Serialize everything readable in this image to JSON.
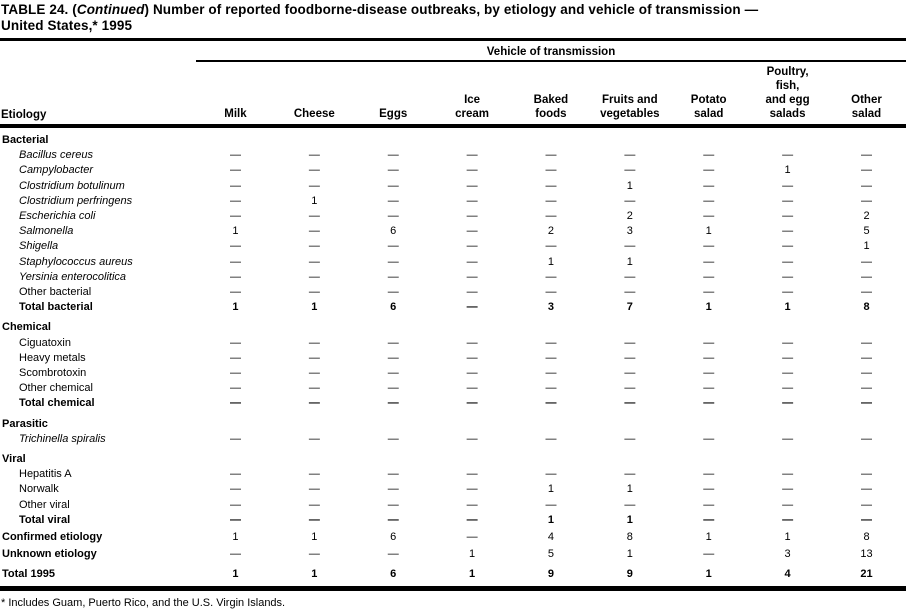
{
  "colors": {
    "text": "#000000",
    "background": "#ffffff"
  },
  "title": {
    "prefix": "TABLE 24. (",
    "continued": "Continued",
    "rest": ") Number of reported foodborne-disease outbreaks, by etiology and vehicle of transmission —",
    "line2": "United States,* 1995"
  },
  "table": {
    "spanner": "Vehicle of transmission",
    "etiology_header": "Etiology",
    "columns": [
      "Milk",
      "Cheese",
      "Eggs",
      "Ice\ncream",
      "Baked\nfoods",
      "Fruits and\nvegetables",
      "Potato\nsalad",
      "Poultry,\nfish,\nand egg\nsalads",
      "Other\nsalad"
    ],
    "rows": [
      {
        "name": "bacterial",
        "label": "Bacterial",
        "style": "section",
        "values": null
      },
      {
        "name": "bacillus-cereus",
        "label": "Bacillus cereus",
        "style": "species",
        "values": [
          "—",
          "—",
          "—",
          "—",
          "—",
          "—",
          "—",
          "—",
          "—"
        ]
      },
      {
        "name": "campylobacter",
        "label": "Campylobacter",
        "style": "species",
        "values": [
          "—",
          "—",
          "—",
          "—",
          "—",
          "—",
          "—",
          "1",
          "—"
        ]
      },
      {
        "name": "clostridium-botulinum",
        "label": "Clostridium botulinum",
        "style": "species",
        "values": [
          "—",
          "—",
          "—",
          "—",
          "—",
          "1",
          "—",
          "—",
          "—"
        ]
      },
      {
        "name": "clostridium-perfringens",
        "label": "Clostridium perfringens",
        "style": "species",
        "values": [
          "—",
          "1",
          "—",
          "—",
          "—",
          "—",
          "—",
          "—",
          "—"
        ]
      },
      {
        "name": "escherichia-coli",
        "label": "Escherichia coli",
        "style": "species",
        "values": [
          "—",
          "—",
          "—",
          "—",
          "—",
          "2",
          "—",
          "—",
          "2"
        ]
      },
      {
        "name": "salmonella",
        "label": "Salmonella",
        "style": "species",
        "values": [
          "1",
          "—",
          "6",
          "—",
          "2",
          "3",
          "1",
          "—",
          "5"
        ]
      },
      {
        "name": "shigella",
        "label": "Shigella",
        "style": "species",
        "values": [
          "—",
          "—",
          "—",
          "—",
          "—",
          "—",
          "—",
          "—",
          "1"
        ]
      },
      {
        "name": "staphylococcus-aureus",
        "label": "Staphylococcus aureus",
        "style": "species",
        "values": [
          "—",
          "—",
          "—",
          "—",
          "1",
          "1",
          "—",
          "—",
          "—"
        ]
      },
      {
        "name": "yersinia-enterocolitica",
        "label": "Yersinia enterocolitica",
        "style": "species",
        "values": [
          "—",
          "—",
          "—",
          "—",
          "—",
          "—",
          "—",
          "—",
          "—"
        ]
      },
      {
        "name": "other-bacterial",
        "label": "Other bacterial",
        "style": "item",
        "values": [
          "—",
          "—",
          "—",
          "—",
          "—",
          "—",
          "—",
          "—",
          "—"
        ]
      },
      {
        "name": "total-bacterial",
        "label": "Total bacterial",
        "style": "total",
        "values": [
          "1",
          "1",
          "6",
          "—",
          "3",
          "7",
          "1",
          "1",
          "8"
        ]
      },
      {
        "name": "chemical",
        "label": "Chemical",
        "style": "section",
        "values": null
      },
      {
        "name": "ciguatoxin",
        "label": "Ciguatoxin",
        "style": "item",
        "values": [
          "—",
          "—",
          "—",
          "—",
          "—",
          "—",
          "—",
          "—",
          "—"
        ]
      },
      {
        "name": "heavy-metals",
        "label": "Heavy metals",
        "style": "item",
        "values": [
          "—",
          "—",
          "—",
          "—",
          "—",
          "—",
          "—",
          "—",
          "—"
        ]
      },
      {
        "name": "scombrotoxin",
        "label": "Scombrotoxin",
        "style": "item",
        "values": [
          "—",
          "—",
          "—",
          "—",
          "—",
          "—",
          "—",
          "—",
          "—"
        ]
      },
      {
        "name": "other-chemical",
        "label": "Other chemical",
        "style": "item",
        "values": [
          "—",
          "—",
          "—",
          "—",
          "—",
          "—",
          "—",
          "—",
          "—"
        ]
      },
      {
        "name": "total-chemical",
        "label": "Total chemical",
        "style": "total",
        "values": [
          "—",
          "—",
          "—",
          "—",
          "—",
          "—",
          "—",
          "—",
          "—"
        ]
      },
      {
        "name": "parasitic",
        "label": "Parasitic",
        "style": "section",
        "values": null
      },
      {
        "name": "trichinella-spiralis",
        "label": "Trichinella spiralis",
        "style": "species",
        "values": [
          "—",
          "—",
          "—",
          "—",
          "—",
          "—",
          "—",
          "—",
          "—"
        ]
      },
      {
        "name": "viral",
        "label": "Viral",
        "style": "section",
        "values": null
      },
      {
        "name": "hepatitis-a",
        "label": "Hepatitis A",
        "style": "item",
        "values": [
          "—",
          "—",
          "—",
          "—",
          "—",
          "—",
          "—",
          "—",
          "—"
        ]
      },
      {
        "name": "norwalk",
        "label": "Norwalk",
        "style": "item",
        "values": [
          "—",
          "—",
          "—",
          "—",
          "1",
          "1",
          "—",
          "—",
          "—"
        ]
      },
      {
        "name": "other-viral",
        "label": "Other viral",
        "style": "item",
        "values": [
          "—",
          "—",
          "—",
          "—",
          "—",
          "—",
          "—",
          "—",
          "—"
        ]
      },
      {
        "name": "total-viral",
        "label": "Total viral",
        "style": "total",
        "values": [
          "—",
          "—",
          "—",
          "—",
          "1",
          "1",
          "—",
          "—",
          "—"
        ]
      },
      {
        "name": "confirmed-etiology",
        "label": "Confirmed etiology",
        "style": "summary",
        "values": [
          "1",
          "1",
          "6",
          "—",
          "4",
          "8",
          "1",
          "1",
          "8"
        ]
      },
      {
        "name": "unknown-etiology",
        "label": "Unknown etiology",
        "style": "summary",
        "values": [
          "—",
          "—",
          "—",
          "1",
          "5",
          "1",
          "—",
          "3",
          "13"
        ]
      },
      {
        "name": "total-1995",
        "label": "Total 1995",
        "style": "grand",
        "values": [
          "1",
          "1",
          "6",
          "1",
          "9",
          "9",
          "1",
          "4",
          "21"
        ]
      }
    ]
  },
  "footnote": "* Includes Guam, Puerto Rico, and the U.S. Virgin Islands."
}
